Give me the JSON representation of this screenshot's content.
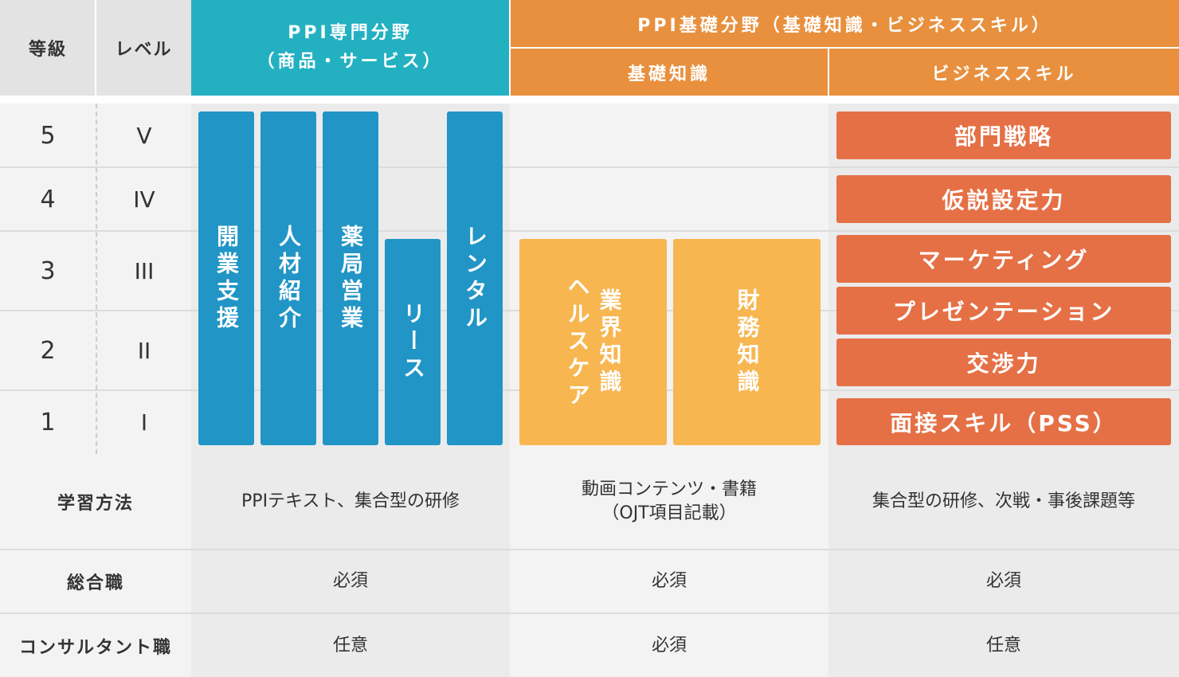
{
  "header": {
    "grade": "等級",
    "level": "レベル",
    "specialty_line1": "PPI専門分野",
    "specialty_line2": "（商品・サービス）",
    "basic": "PPI基礎分野（基礎知識・ビジネススキル）",
    "basic_knowledge": "基礎知識",
    "business_skill": "ビジネススキル"
  },
  "grades": [
    {
      "grade": "5",
      "level": "V"
    },
    {
      "grade": "4",
      "level": "IV"
    },
    {
      "grade": "3",
      "level": "III"
    },
    {
      "grade": "2",
      "level": "II"
    },
    {
      "grade": "1",
      "level": "I"
    }
  ],
  "specialty_bars": [
    {
      "label": "開業支援",
      "from_grade": 1,
      "to_grade": 5
    },
    {
      "label": "人材紹介",
      "from_grade": 1,
      "to_grade": 5
    },
    {
      "label": "薬局営業",
      "from_grade": 1,
      "to_grade": 5
    },
    {
      "label": "リース",
      "from_grade": 1,
      "to_grade": 3
    },
    {
      "label": "レンタル",
      "from_grade": 1,
      "to_grade": 5
    }
  ],
  "knowledge_boxes": [
    {
      "line1": "ヘルスケア",
      "line2": "業界知識",
      "from_grade": 1,
      "to_grade": 3
    },
    {
      "line1": "財務知識",
      "line2": "",
      "from_grade": 1,
      "to_grade": 3
    }
  ],
  "skills": [
    "部門戦略",
    "仮説設定力",
    "マーケティング",
    "プレゼンテーション",
    "交渉力",
    "面接スキル（PSS）"
  ],
  "rows": {
    "method": {
      "label": "学習方法",
      "specialty": "PPIテキスト、集合型の研修",
      "basic_line1": "動画コンテンツ・書籍",
      "basic_line2": "（OJT項目記載）",
      "business": "集合型の研修、次戦・事後課題等"
    },
    "general": {
      "label": "総合職",
      "specialty": "必須",
      "basic": "必須",
      "business": "必須"
    },
    "consultant": {
      "label": "コンサルタント職",
      "specialty": "任意",
      "basic": "必須",
      "business": "任意"
    }
  },
  "colors": {
    "teal": "#23b1c2",
    "blue": "#2195c6",
    "orange_header": "#e8903e",
    "yellow": "#f8b651",
    "red_orange": "#e57045",
    "gray_header": "#e3e3e3",
    "light_gray": "#f3f3f3",
    "mid_gray": "#ebebec"
  }
}
